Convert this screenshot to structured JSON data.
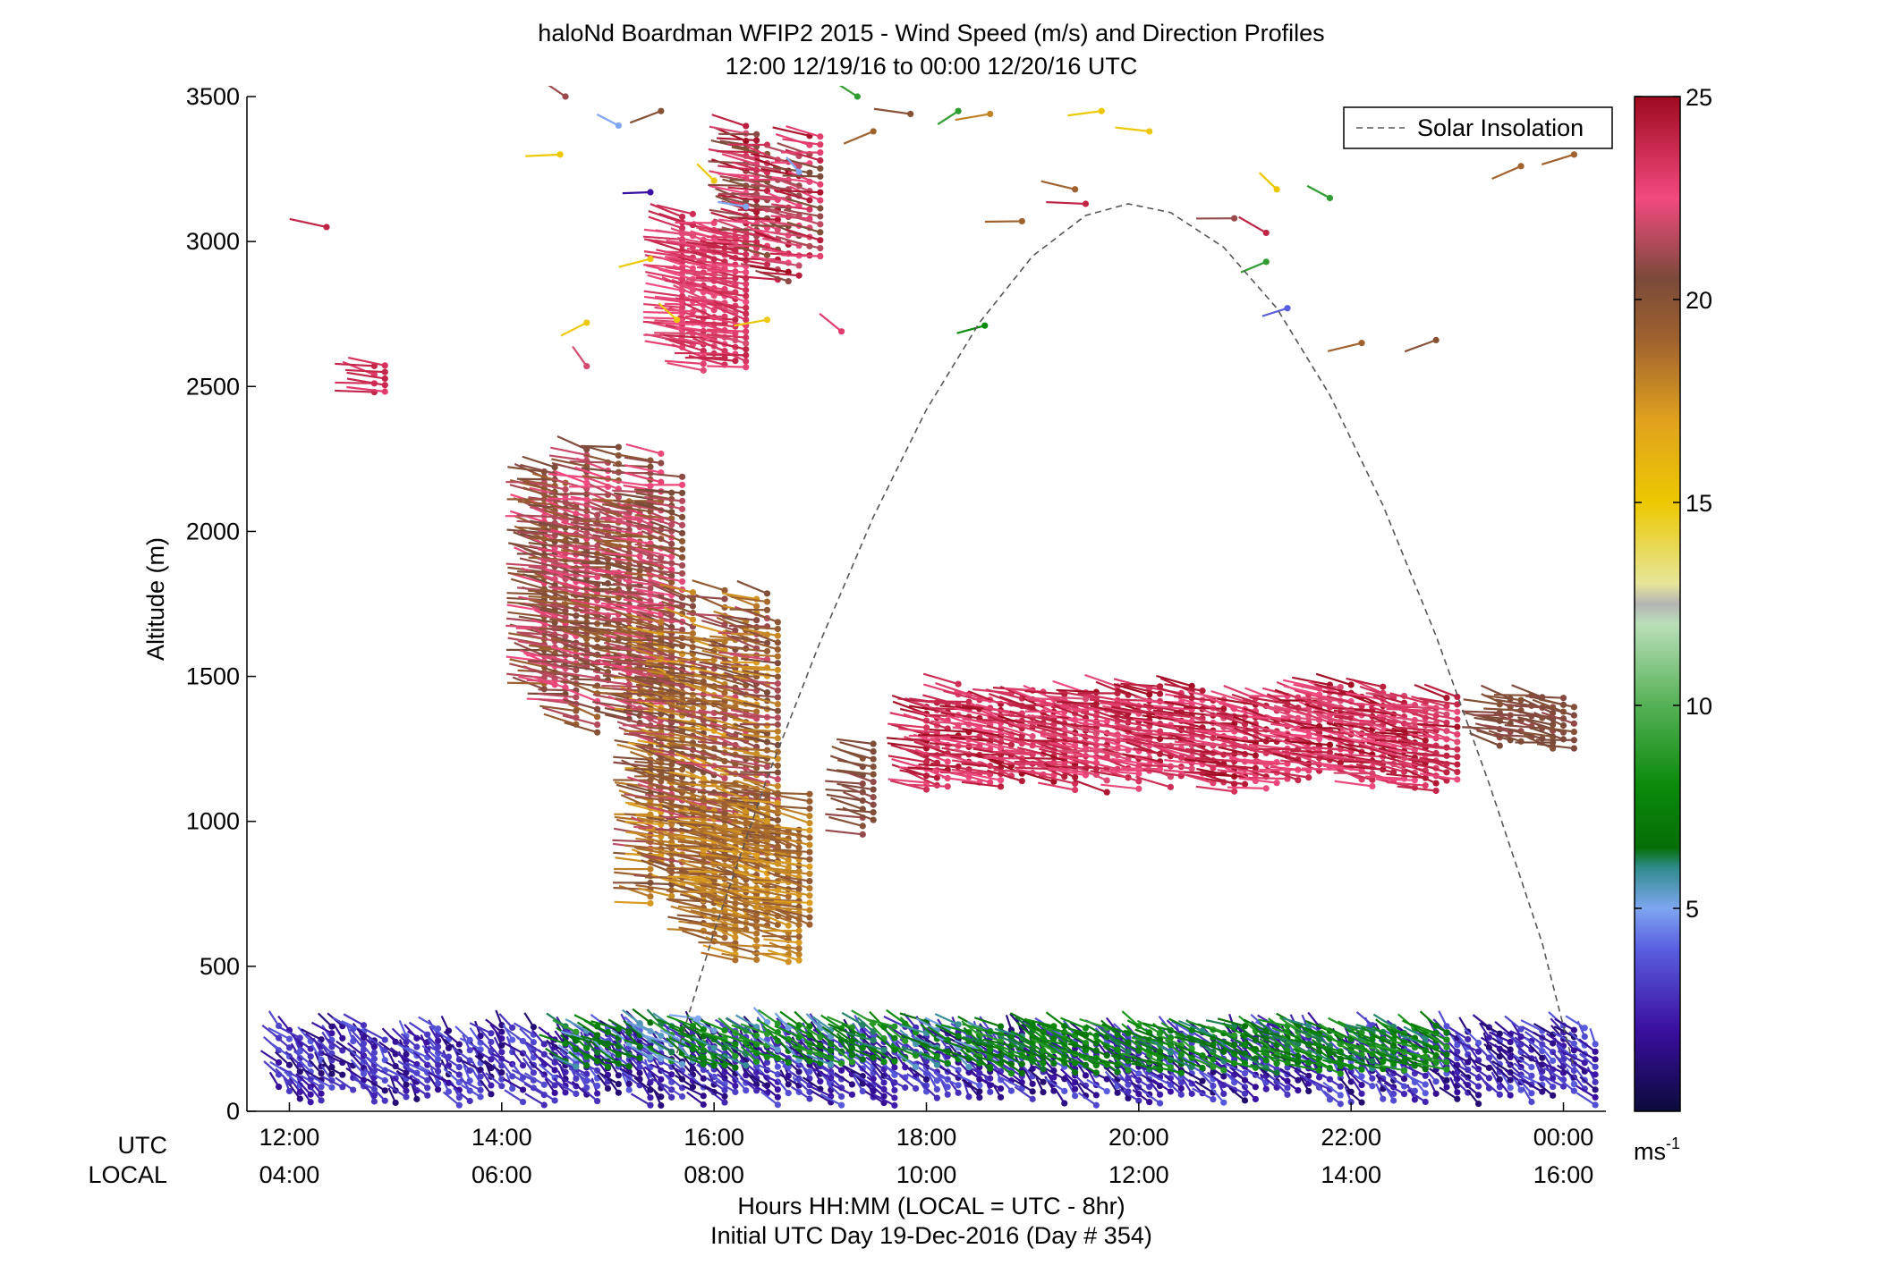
{
  "chart_data": {
    "type": "scatter",
    "title": "haloNd Boardman WFIP2 2015 - Wind Speed (m/s) and Direction Profiles",
    "subtitle": "12:00 12/19/16 to 00:00 12/20/16  UTC",
    "ylabel": "Altitude (m)",
    "xlabel": "Hours HH:MM  (LOCAL = UTC - 8hr)",
    "xlabel2": "Initial UTC Day 19-Dec-2016 (Day # 354)",
    "xlim_utc_hours": [
      11.6,
      24.4
    ],
    "ylim": [
      0,
      3500
    ],
    "yticks": [
      0,
      500,
      1000,
      1500,
      2000,
      2500,
      3000,
      3500
    ],
    "xtick_row_labels": {
      "utc": "UTC",
      "local": "LOCAL"
    },
    "xticks": [
      {
        "utc_hours": 12,
        "utc": "12:00",
        "local": "04:00"
      },
      {
        "utc_hours": 14,
        "utc": "14:00",
        "local": "06:00"
      },
      {
        "utc_hours": 16,
        "utc": "16:00",
        "local": "08:00"
      },
      {
        "utc_hours": 18,
        "utc": "18:00",
        "local": "10:00"
      },
      {
        "utc_hours": 20,
        "utc": "20:00",
        "local": "12:00"
      },
      {
        "utc_hours": 22,
        "utc": "22:00",
        "local": "14:00"
      },
      {
        "utc_hours": 24,
        "utc": "00:00",
        "local": "16:00"
      }
    ],
    "legend": {
      "entries": [
        "Solar Insolation"
      ],
      "placement": "top-right"
    },
    "colorbar": {
      "min": 0,
      "max": 25,
      "ticks": [
        5,
        10,
        15,
        20,
        25
      ],
      "label": "ms",
      "label_sup": "-1",
      "stops": [
        {
          "v": 0,
          "color": "#0b0b3a"
        },
        {
          "v": 2,
          "color": "#3a0fa0"
        },
        {
          "v": 4,
          "color": "#5a5ee0"
        },
        {
          "v": 5,
          "color": "#7fa6f0"
        },
        {
          "v": 6,
          "color": "#2f8c8c"
        },
        {
          "v": 6.5,
          "color": "#066e06"
        },
        {
          "v": 8,
          "color": "#0a8a0a"
        },
        {
          "v": 10,
          "color": "#55b055"
        },
        {
          "v": 12,
          "color": "#b9dfb9"
        },
        {
          "v": 12.5,
          "color": "#b4b4b4"
        },
        {
          "v": 13,
          "color": "#e6e69a"
        },
        {
          "v": 15,
          "color": "#ecc800"
        },
        {
          "v": 17,
          "color": "#e0a21e"
        },
        {
          "v": 19,
          "color": "#a0622e"
        },
        {
          "v": 20.5,
          "color": "#7a4a3a"
        },
        {
          "v": 22.5,
          "color": "#f24a80"
        },
        {
          "v": 25,
          "color": "#9e0a1e"
        }
      ]
    },
    "solar_insolation": {
      "style": "dashed",
      "color": "#555555",
      "points": [
        {
          "x": 15.65,
          "y": 200
        },
        {
          "x": 16.0,
          "y": 620
        },
        {
          "x": 16.5,
          "y": 1150
        },
        {
          "x": 17.0,
          "y": 1620
        },
        {
          "x": 17.5,
          "y": 2050
        },
        {
          "x": 18.0,
          "y": 2420
        },
        {
          "x": 18.5,
          "y": 2720
        },
        {
          "x": 19.0,
          "y": 2950
        },
        {
          "x": 19.5,
          "y": 3090
        },
        {
          "x": 19.9,
          "y": 3130
        },
        {
          "x": 20.3,
          "y": 3100
        },
        {
          "x": 20.8,
          "y": 2980
        },
        {
          "x": 21.3,
          "y": 2770
        },
        {
          "x": 21.8,
          "y": 2470
        },
        {
          "x": 22.3,
          "y": 2090
        },
        {
          "x": 22.8,
          "y": 1640
        },
        {
          "x": 23.3,
          "y": 1130
        },
        {
          "x": 23.8,
          "y": 580
        },
        {
          "x": 24.1,
          "y": 150
        }
      ]
    },
    "barb_groups": [
      {
        "x0": 11.9,
        "x1": 24.3,
        "y0": 20,
        "y1": 300,
        "v0": 1,
        "v1": 4,
        "dir": 210,
        "note": "low-level weak winds"
      },
      {
        "x0": 14.6,
        "x1": 18.6,
        "y0": 150,
        "y1": 310,
        "v0": 5,
        "v1": 9,
        "dir": 225
      },
      {
        "x0": 18.6,
        "x1": 22.9,
        "y0": 130,
        "y1": 300,
        "v0": 6,
        "v1": 9,
        "dir": 230
      },
      {
        "x0": 14.4,
        "x1": 15.7,
        "y0": 1300,
        "y1": 2300,
        "v0": 19,
        "v1": 23,
        "dir": 250
      },
      {
        "x0": 15.4,
        "x1": 16.6,
        "y0": 700,
        "y1": 1800,
        "v0": 17,
        "v1": 22,
        "dir": 250
      },
      {
        "x0": 15.9,
        "x1": 16.9,
        "y0": 500,
        "y1": 1100,
        "v0": 17,
        "v1": 20,
        "dir": 250
      },
      {
        "x0": 17.4,
        "x1": 17.5,
        "y0": 950,
        "y1": 1300,
        "v0": 20,
        "v1": 21,
        "dir": 250
      },
      {
        "x0": 18.0,
        "x1": 23.0,
        "y0": 1100,
        "y1": 1480,
        "v0": 22,
        "v1": 25,
        "dir": 250
      },
      {
        "x0": 23.4,
        "x1": 24.1,
        "y0": 1250,
        "y1": 1440,
        "v0": 20,
        "v1": 21,
        "dir": 250
      },
      {
        "x0": 15.7,
        "x1": 16.3,
        "y0": 2500,
        "y1": 3100,
        "v0": 22,
        "v1": 24,
        "dir": 250
      },
      {
        "x0": 16.3,
        "x1": 17.0,
        "y0": 2850,
        "y1": 3400,
        "v0": 20,
        "v1": 25,
        "dir": 250
      },
      {
        "x0": 12.8,
        "x1": 12.9,
        "y0": 2480,
        "y1": 2600,
        "v0": 23,
        "v1": 24,
        "dir": 250
      }
    ],
    "isolated_barbs": [
      {
        "x": 12.35,
        "y": 3050,
        "v": 24
      },
      {
        "x": 14.6,
        "y": 3500,
        "v": 21
      },
      {
        "x": 14.55,
        "y": 3300,
        "v": 15
      },
      {
        "x": 14.8,
        "y": 2720,
        "v": 15
      },
      {
        "x": 14.8,
        "y": 2570,
        "v": 22
      },
      {
        "x": 15.1,
        "y": 3400,
        "v": 5
      },
      {
        "x": 15.4,
        "y": 3170,
        "v": 2
      },
      {
        "x": 15.4,
        "y": 2940,
        "v": 15
      },
      {
        "x": 15.5,
        "y": 3450,
        "v": 20
      },
      {
        "x": 15.65,
        "y": 2730,
        "v": 15
      },
      {
        "x": 16.0,
        "y": 3210,
        "v": 15
      },
      {
        "x": 16.3,
        "y": 3120,
        "v": 5
      },
      {
        "x": 16.5,
        "y": 2730,
        "v": 15
      },
      {
        "x": 16.8,
        "y": 3240,
        "v": 5
      },
      {
        "x": 17.2,
        "y": 2690,
        "v": 23
      },
      {
        "x": 17.35,
        "y": 3500,
        "v": 9
      },
      {
        "x": 17.5,
        "y": 3380,
        "v": 19
      },
      {
        "x": 17.85,
        "y": 3440,
        "v": 20
      },
      {
        "x": 18.3,
        "y": 3450,
        "v": 9
      },
      {
        "x": 18.6,
        "y": 3440,
        "v": 18
      },
      {
        "x": 18.55,
        "y": 2710,
        "v": 8
      },
      {
        "x": 18.9,
        "y": 3070,
        "v": 19
      },
      {
        "x": 19.4,
        "y": 3180,
        "v": 19
      },
      {
        "x": 19.5,
        "y": 3130,
        "v": 24
      },
      {
        "x": 19.65,
        "y": 3450,
        "v": 15
      },
      {
        "x": 20.1,
        "y": 3380,
        "v": 15
      },
      {
        "x": 20.9,
        "y": 3080,
        "v": 21
      },
      {
        "x": 21.3,
        "y": 3180,
        "v": 15
      },
      {
        "x": 21.2,
        "y": 3030,
        "v": 24
      },
      {
        "x": 21.2,
        "y": 2930,
        "v": 9
      },
      {
        "x": 21.4,
        "y": 2770,
        "v": 4
      },
      {
        "x": 21.8,
        "y": 3150,
        "v": 9
      },
      {
        "x": 22.1,
        "y": 2650,
        "v": 19
      },
      {
        "x": 22.8,
        "y": 2660,
        "v": 20
      },
      {
        "x": 23.6,
        "y": 3260,
        "v": 19
      },
      {
        "x": 24.1,
        "y": 3300,
        "v": 19
      },
      {
        "x": 15.85,
        "y": 320,
        "v": 5
      }
    ]
  }
}
